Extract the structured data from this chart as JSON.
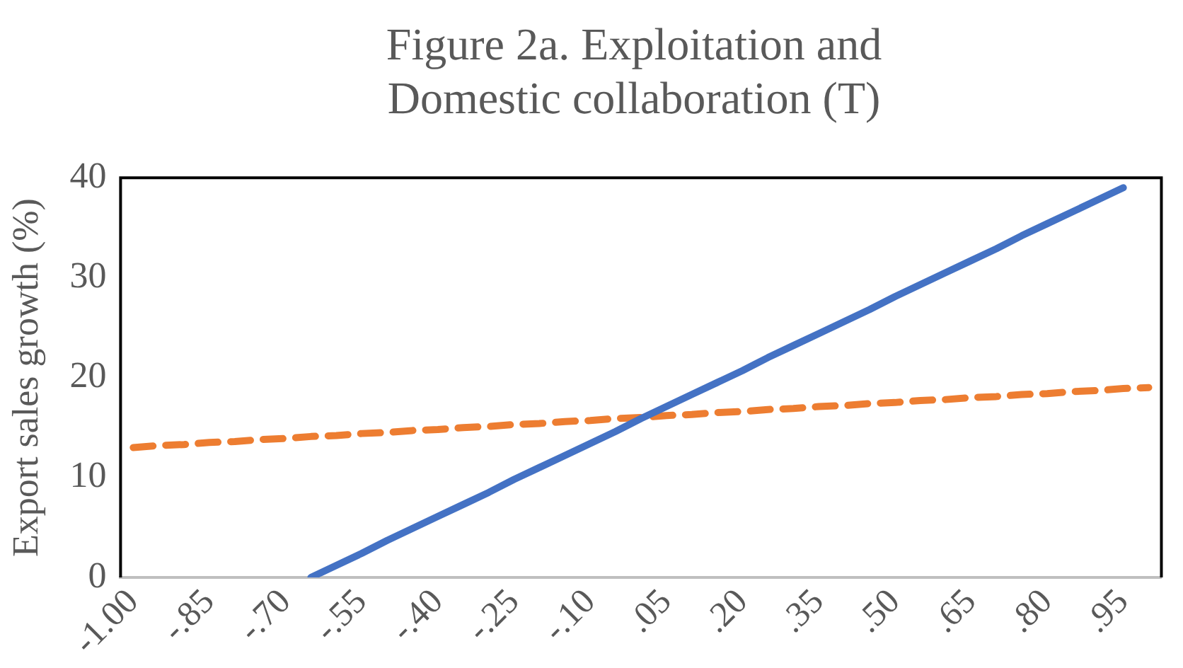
{
  "chart_data": {
    "type": "line",
    "title": "Figure 2a. Exploitation and Domestic collaboration (T)",
    "ylabel": "Export sales growth (%)",
    "categories": [
      "-1.00",
      null,
      null,
      "-.85",
      null,
      null,
      "-.70",
      null,
      null,
      "-.55",
      null,
      null,
      "-.40",
      null,
      null,
      "-.25",
      null,
      null,
      "-.10",
      null,
      null,
      ".05",
      null,
      null,
      ".20",
      null,
      null,
      ".35",
      null,
      null,
      ".50",
      null,
      null,
      ".65",
      null,
      null,
      ".80",
      null,
      null,
      ".95",
      null
    ],
    "series": [
      {
        "color": "#4472c4",
        "line_style": "solid",
        "values": [
          null,
          null,
          null,
          null,
          null,
          null,
          null,
          0,
          1.2,
          2.4,
          3.7,
          4.9,
          6.1,
          7.3,
          8.5,
          9.8,
          11,
          12.2,
          13.4,
          14.6,
          15.9,
          17.1,
          18.3,
          19.5,
          20.7,
          22,
          23.2,
          24.4,
          25.6,
          26.8,
          28.1,
          29.3,
          30.5,
          31.7,
          32.9,
          34.2,
          35.4,
          36.6,
          37.8,
          39,
          null
        ]
      },
      {
        "color": "#ed7d31",
        "line_style": "dashed",
        "values": [
          13,
          13.2,
          13.3,
          13.5,
          13.6,
          13.8,
          13.9,
          14.1,
          14.2,
          14.4,
          14.5,
          14.7,
          14.8,
          15,
          15.1,
          15.3,
          15.4,
          15.6,
          15.7,
          15.9,
          16,
          16.2,
          16.3,
          16.5,
          16.6,
          16.8,
          16.9,
          17.1,
          17.2,
          17.4,
          17.5,
          17.7,
          17.8,
          18,
          18.1,
          18.3,
          18.4,
          18.6,
          18.7,
          18.9,
          19
        ]
      }
    ],
    "ylim": [
      0,
      40
    ],
    "yticks": [
      0,
      10,
      20,
      30,
      40
    ],
    "grid": false,
    "legend": false,
    "marker": "none"
  }
}
